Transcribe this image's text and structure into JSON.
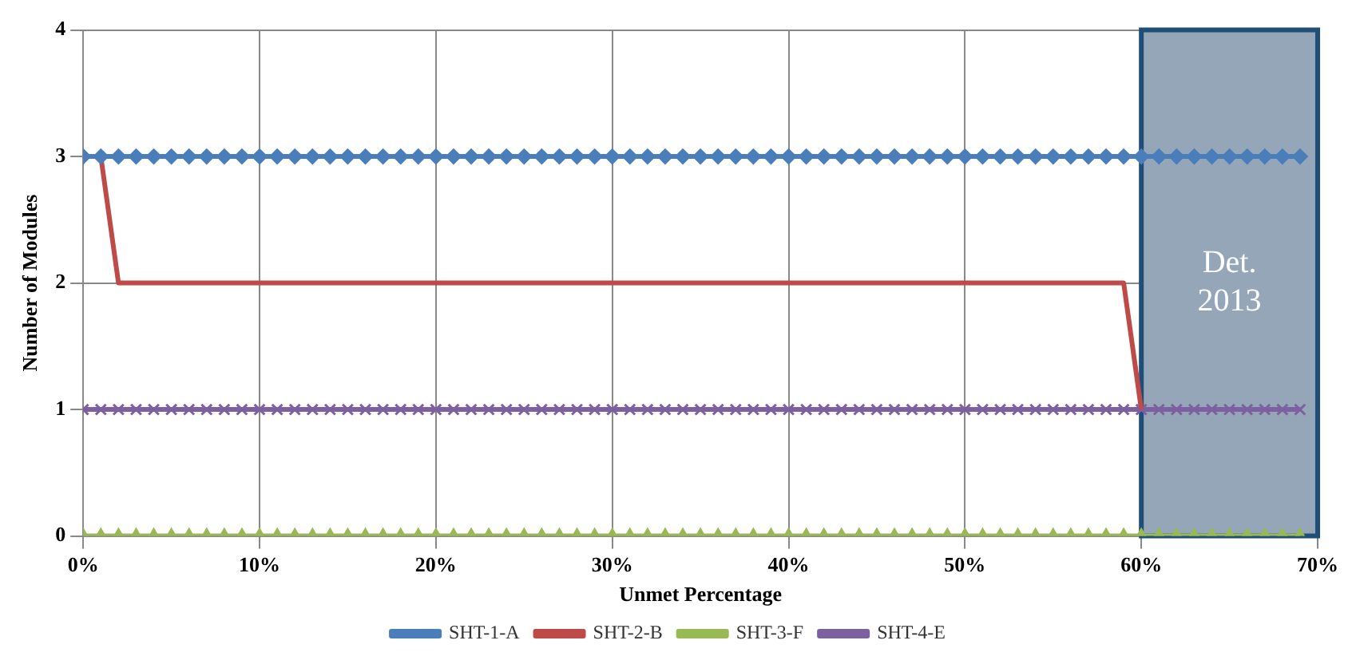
{
  "chart_data": {
    "type": "line",
    "xlabel": "Unmet Percentage",
    "ylabel": "Number of Modules",
    "x": [
      0,
      1,
      2,
      3,
      4,
      5,
      6,
      7,
      8,
      9,
      10,
      11,
      12,
      13,
      14,
      15,
      16,
      17,
      18,
      19,
      20,
      21,
      22,
      23,
      24,
      25,
      26,
      27,
      28,
      29,
      30,
      31,
      32,
      33,
      34,
      35,
      36,
      37,
      38,
      39,
      40,
      41,
      42,
      43,
      44,
      45,
      46,
      47,
      48,
      49,
      50,
      51,
      52,
      53,
      54,
      55,
      56,
      57,
      58,
      59,
      60,
      61,
      62,
      63,
      64,
      65,
      66,
      67,
      68,
      69
    ],
    "series": [
      {
        "name": "SHT-1-A",
        "color": "#4a7ebb",
        "marker": "diamond",
        "values": [
          3,
          3,
          3,
          3,
          3,
          3,
          3,
          3,
          3,
          3,
          3,
          3,
          3,
          3,
          3,
          3,
          3,
          3,
          3,
          3,
          3,
          3,
          3,
          3,
          3,
          3,
          3,
          3,
          3,
          3,
          3,
          3,
          3,
          3,
          3,
          3,
          3,
          3,
          3,
          3,
          3,
          3,
          3,
          3,
          3,
          3,
          3,
          3,
          3,
          3,
          3,
          3,
          3,
          3,
          3,
          3,
          3,
          3,
          3,
          3,
          3,
          3,
          3,
          3,
          3,
          3,
          3,
          3,
          3,
          3
        ]
      },
      {
        "name": "SHT-2-B",
        "color": "#be4b48",
        "marker": "none",
        "values": [
          3,
          3,
          2,
          2,
          2,
          2,
          2,
          2,
          2,
          2,
          2,
          2,
          2,
          2,
          2,
          2,
          2,
          2,
          2,
          2,
          2,
          2,
          2,
          2,
          2,
          2,
          2,
          2,
          2,
          2,
          2,
          2,
          2,
          2,
          2,
          2,
          2,
          2,
          2,
          2,
          2,
          2,
          2,
          2,
          2,
          2,
          2,
          2,
          2,
          2,
          2,
          2,
          2,
          2,
          2,
          2,
          2,
          2,
          2,
          2,
          1,
          null,
          null,
          null,
          null,
          null,
          null,
          null,
          null,
          null
        ]
      },
      {
        "name": "SHT-3-F",
        "color": "#98b954",
        "marker": "triangle",
        "values": [
          0,
          0,
          0,
          0,
          0,
          0,
          0,
          0,
          0,
          0,
          0,
          0,
          0,
          0,
          0,
          0,
          0,
          0,
          0,
          0,
          0,
          0,
          0,
          0,
          0,
          0,
          0,
          0,
          0,
          0,
          0,
          0,
          0,
          0,
          0,
          0,
          0,
          0,
          0,
          0,
          0,
          0,
          0,
          0,
          0,
          0,
          0,
          0,
          0,
          0,
          0,
          0,
          0,
          0,
          0,
          0,
          0,
          0,
          0,
          0,
          0,
          0,
          0,
          0,
          0,
          0,
          0,
          0,
          0,
          0
        ]
      },
      {
        "name": "SHT-4-E",
        "color": "#7d60a0",
        "marker": "cross",
        "values": [
          1,
          1,
          1,
          1,
          1,
          1,
          1,
          1,
          1,
          1,
          1,
          1,
          1,
          1,
          1,
          1,
          1,
          1,
          1,
          1,
          1,
          1,
          1,
          1,
          1,
          1,
          1,
          1,
          1,
          1,
          1,
          1,
          1,
          1,
          1,
          1,
          1,
          1,
          1,
          1,
          1,
          1,
          1,
          1,
          1,
          1,
          1,
          1,
          1,
          1,
          1,
          1,
          1,
          1,
          1,
          1,
          1,
          1,
          1,
          1,
          1,
          1,
          1,
          1,
          1,
          1,
          1,
          1,
          1,
          1
        ]
      }
    ],
    "xlim": [
      0,
      70
    ],
    "xticks": [
      {
        "value": 0,
        "label": "0%"
      },
      {
        "value": 10,
        "label": "10%"
      },
      {
        "value": 20,
        "label": "20%"
      },
      {
        "value": 30,
        "label": "30%"
      },
      {
        "value": 40,
        "label": "40%"
      },
      {
        "value": 50,
        "label": "50%"
      },
      {
        "value": 60,
        "label": "60%"
      },
      {
        "value": 70,
        "label": "70%"
      }
    ],
    "ylim": [
      0,
      4
    ],
    "yticks": [
      0,
      1,
      2,
      3,
      4
    ],
    "bands": [
      {
        "axis": "x",
        "from": 60,
        "to": 70,
        "label": "Det. 2013",
        "color": "#94a6b8"
      }
    ],
    "grid": true,
    "legend": "bottom"
  }
}
